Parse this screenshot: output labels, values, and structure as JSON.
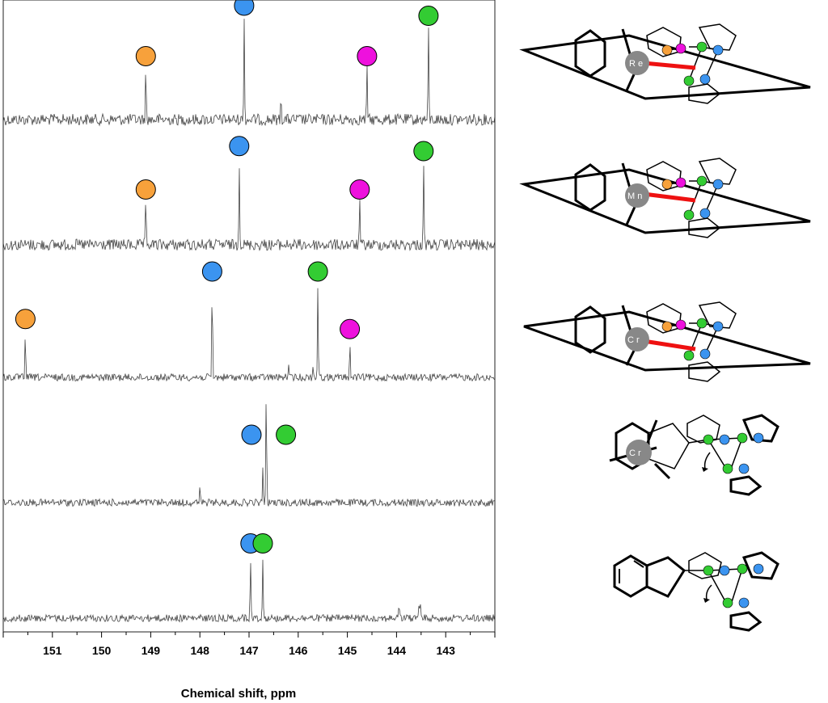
{
  "chart_data": {
    "type": "line",
    "subtype": "stacked NMR spectra",
    "title": "",
    "xlabel": "Chemical shift, ppm",
    "ylabel": "",
    "xlim": [
      152.0,
      142.0
    ],
    "x_reversed": true,
    "grid": false,
    "legend": "none",
    "x_ticks": [
      "151",
      "150",
      "149",
      "148",
      "147",
      "146",
      "145",
      "144",
      "143"
    ],
    "marker_colors": {
      "orange": "#f7a13b",
      "blue": "#3b94f0",
      "magenta": "#ee11dd",
      "green": "#33cc33"
    },
    "spectra": [
      {
        "molecule_label": "R e",
        "peaks": [
          {
            "ppm": 149.1,
            "height": 0.5,
            "marker": "orange"
          },
          {
            "ppm": 147.1,
            "height": 1.0,
            "marker": "blue"
          },
          {
            "ppm": 144.6,
            "height": 0.5,
            "marker": "magenta"
          },
          {
            "ppm": 143.35,
            "height": 0.9,
            "marker": "green"
          }
        ],
        "minor_peaks": [
          {
            "ppm": 146.35,
            "height": 0.25
          }
        ]
      },
      {
        "molecule_label": "M n",
        "peaks": [
          {
            "ppm": 149.1,
            "height": 0.42,
            "marker": "orange"
          },
          {
            "ppm": 147.2,
            "height": 0.85,
            "marker": "blue"
          },
          {
            "ppm": 144.75,
            "height": 0.42,
            "marker": "magenta"
          },
          {
            "ppm": 143.45,
            "height": 0.8,
            "marker": "green"
          }
        ],
        "minor_peaks": []
      },
      {
        "molecule_label": "C r",
        "peaks": [
          {
            "ppm": 151.55,
            "height": 0.45,
            "marker": "orange"
          },
          {
            "ppm": 147.75,
            "height": 0.92,
            "marker": "blue"
          },
          {
            "ppm": 145.6,
            "height": 0.92,
            "marker": "green"
          },
          {
            "ppm": 144.95,
            "height": 0.35,
            "marker": "magenta"
          }
        ],
        "minor_peaks": [
          {
            "ppm": 146.2,
            "height": 0.12
          },
          {
            "ppm": 145.7,
            "height": 0.1
          }
        ]
      },
      {
        "molecule_label": "C r",
        "peaks": [
          {
            "ppm": 146.65,
            "height": 0.8,
            "marker": "green",
            "marker_offset": -0.4
          },
          {
            "ppm": 146.65,
            "height": 0.8,
            "marker": "blue",
            "marker_offset": 0.3
          }
        ],
        "minor_peaks": [
          {
            "ppm": 148.0,
            "height": 0.2
          },
          {
            "ppm": 146.72,
            "height": 0.55
          }
        ]
      },
      {
        "molecule_label": "",
        "peaks": [
          {
            "ppm": 146.97,
            "height": 0.9,
            "marker": "blue"
          },
          {
            "ppm": 146.72,
            "height": 0.9,
            "marker": "green"
          }
        ],
        "minor_peaks": [
          {
            "ppm": 143.95,
            "height": 0.25
          },
          {
            "ppm": 143.55,
            "height": 0.2
          },
          {
            "ppm": 143.52,
            "height": 0.25
          }
        ]
      }
    ]
  }
}
